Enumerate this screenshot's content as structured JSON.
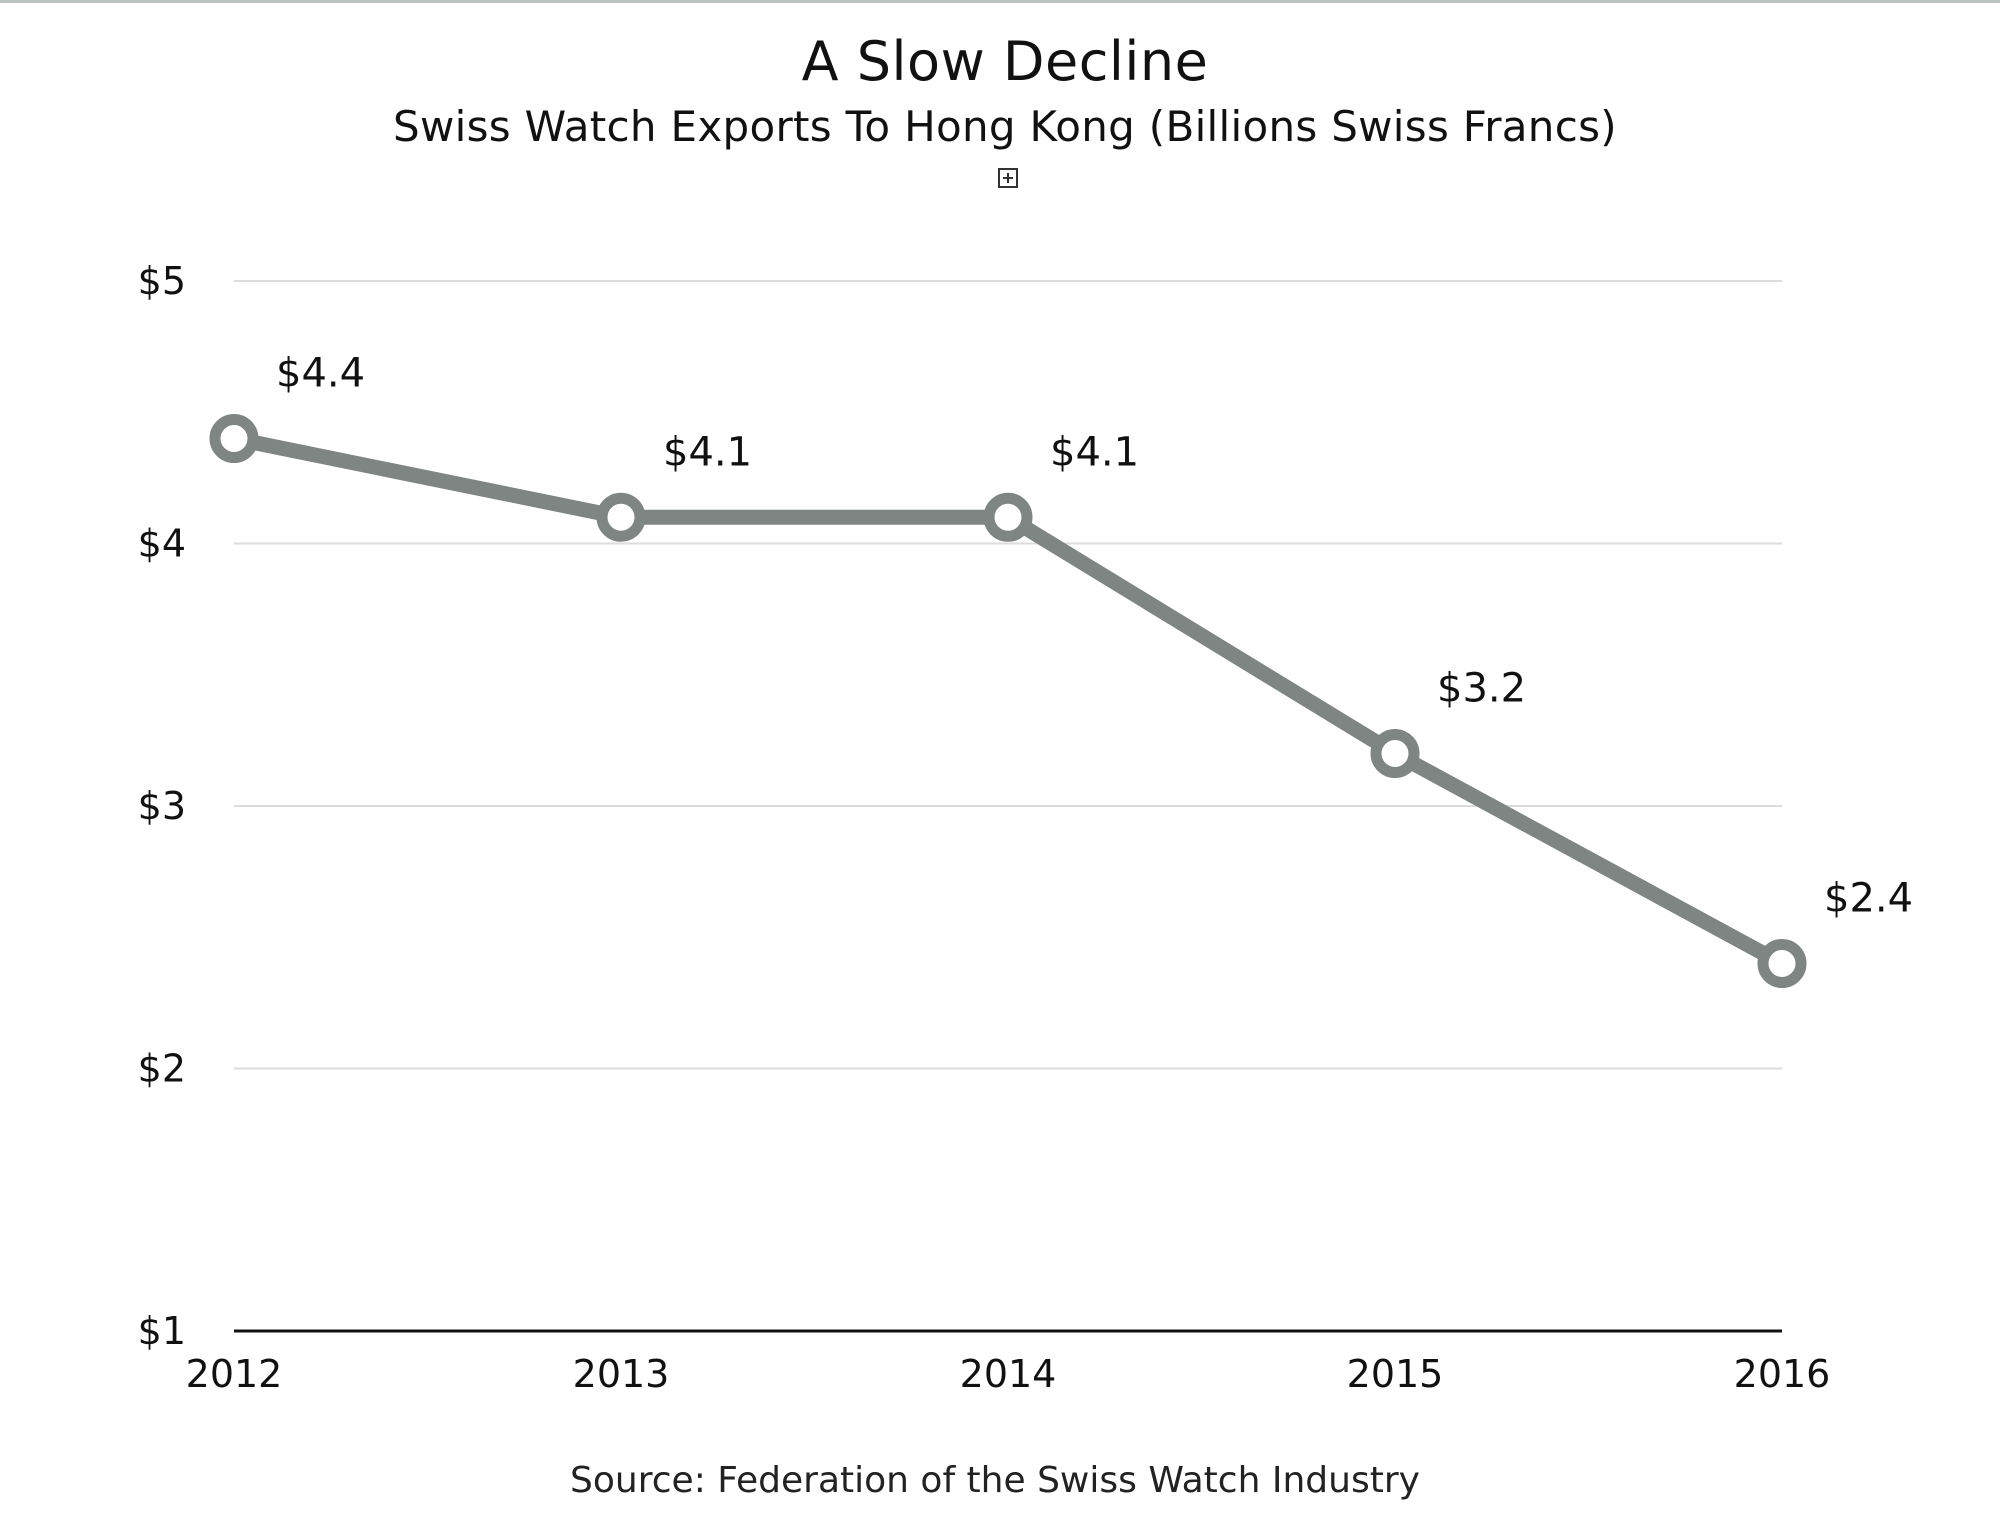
{
  "chart_data": {
    "type": "line",
    "title": "A Slow Decline",
    "subtitle": "Swiss Watch Exports To Hong Kong (Billions Swiss Francs)",
    "source": "Source: Federation of the Swiss Watch Industry",
    "categories": [
      "2012",
      "2013",
      "2014",
      "2015",
      "2016"
    ],
    "series": [
      {
        "values": [
          4.4,
          4.1,
          4.1,
          3.2,
          2.4
        ],
        "data_labels": [
          "$4.4",
          "$4.1",
          "$4.1",
          "$3.2",
          "$2.4"
        ],
        "color": "#7f8583"
      }
    ],
    "ylim": [
      1,
      5
    ],
    "yticks": [
      1,
      2,
      3,
      4,
      5
    ],
    "ytick_labels": [
      "$1",
      "$2",
      "$3",
      "$4",
      "$5"
    ],
    "grid": true,
    "gridline_color": "#dcdcdc",
    "axis_color": "#111111",
    "legend": "none"
  }
}
